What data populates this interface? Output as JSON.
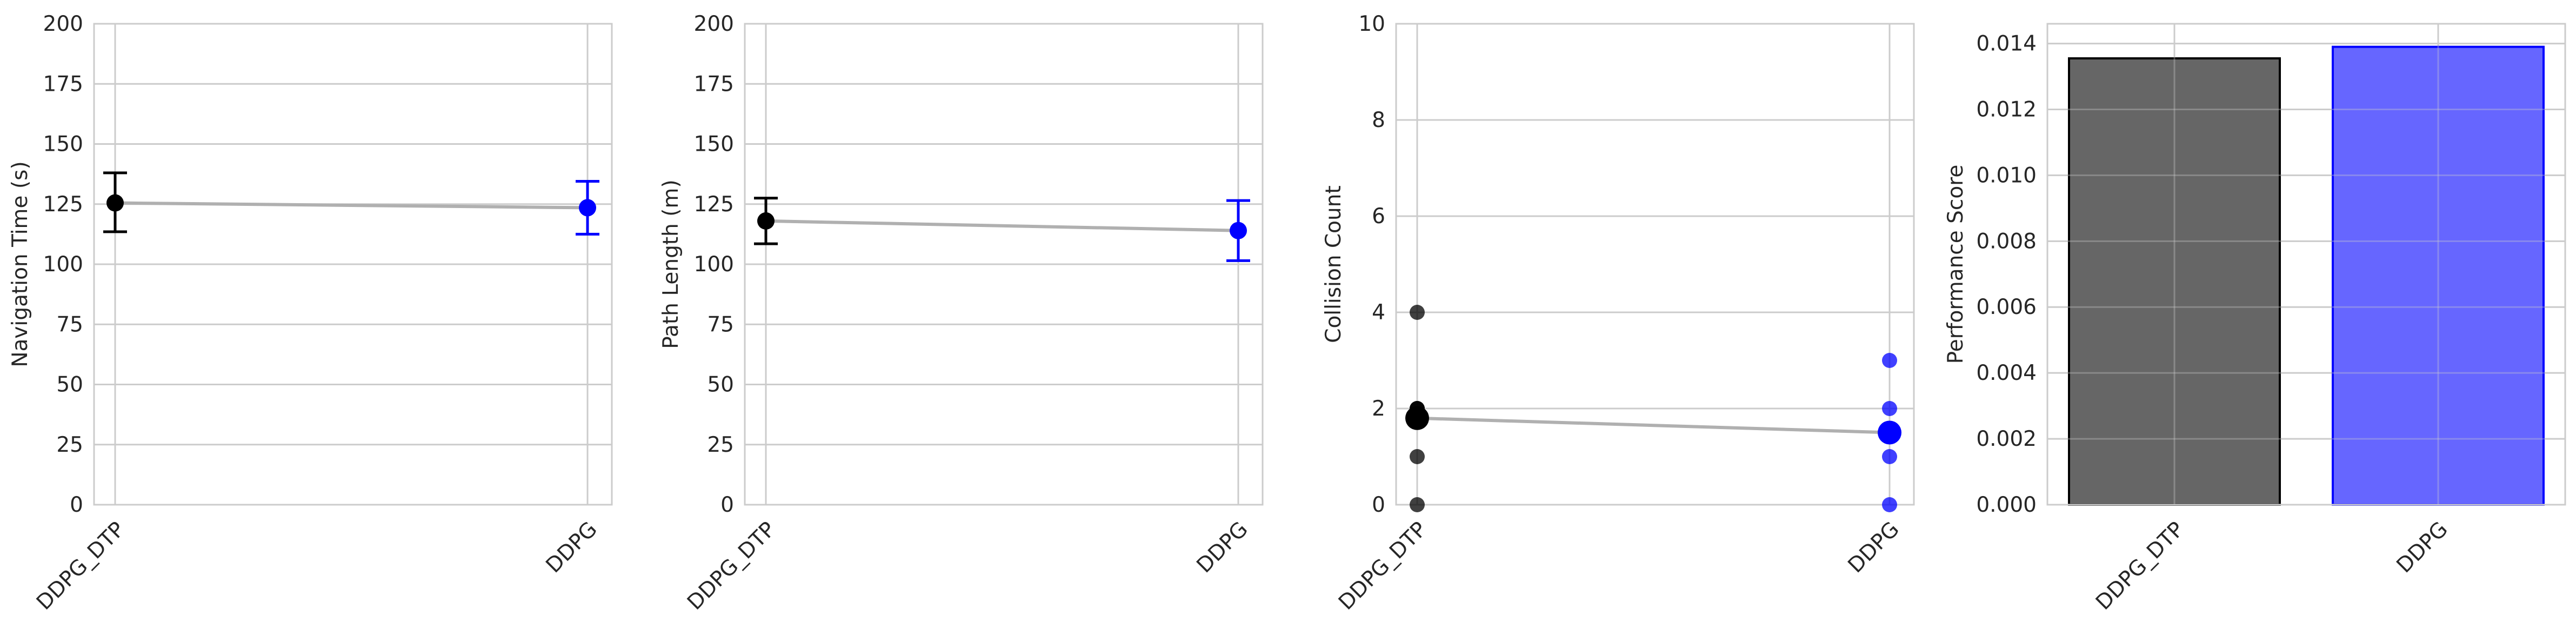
{
  "chart_data": [
    {
      "type": "scatter",
      "title": "",
      "xlabel": "",
      "ylabel": "Navigation Time (s)",
      "categories": [
        "DDPG_DTP",
        "DDPG"
      ],
      "ylim": [
        0,
        200
      ],
      "yticks": [
        0,
        25,
        50,
        75,
        100,
        125,
        150,
        175,
        200
      ],
      "grid": true,
      "connector_color": "#b0b0b0",
      "series": [
        {
          "category": "DDPG_DTP",
          "mean": 125.5,
          "err_low": 113.5,
          "err_high": 138.0,
          "color": "#000000"
        },
        {
          "category": "DDPG",
          "mean": 123.5,
          "err_low": 112.5,
          "err_high": 134.5,
          "color": "#0000ff"
        }
      ]
    },
    {
      "type": "scatter",
      "title": "",
      "xlabel": "",
      "ylabel": "Path Length (m)",
      "categories": [
        "DDPG_DTP",
        "DDPG"
      ],
      "ylim": [
        0,
        200
      ],
      "yticks": [
        0,
        25,
        50,
        75,
        100,
        125,
        150,
        175,
        200
      ],
      "grid": true,
      "connector_color": "#b0b0b0",
      "series": [
        {
          "category": "DDPG_DTP",
          "mean": 118.0,
          "err_low": 108.5,
          "err_high": 127.5,
          "color": "#000000"
        },
        {
          "category": "DDPG",
          "mean": 114.0,
          "err_low": 101.5,
          "err_high": 126.5,
          "color": "#0000ff"
        }
      ]
    },
    {
      "type": "scatter",
      "title": "",
      "xlabel": "",
      "ylabel": "Collision Count",
      "categories": [
        "DDPG_DTP",
        "DDPG"
      ],
      "ylim": [
        0,
        10
      ],
      "yticks": [
        0,
        2,
        4,
        6,
        8,
        10
      ],
      "grid": true,
      "connector_color": "#b0b0b0",
      "means": [
        {
          "category": "DDPG_DTP",
          "value": 1.8,
          "color": "#000000"
        },
        {
          "category": "DDPG",
          "value": 1.5,
          "color": "#0000ff"
        }
      ],
      "points": [
        {
          "category": "DDPG_DTP",
          "values": [
            0,
            1,
            2,
            2,
            2,
            4
          ],
          "color": "#000000"
        },
        {
          "category": "DDPG",
          "values": [
            0,
            1,
            2,
            3
          ],
          "color": "#0000ff"
        }
      ]
    },
    {
      "type": "bar",
      "title": "",
      "xlabel": "",
      "ylabel": "Performance Score",
      "categories": [
        "DDPG_DTP",
        "DDPG"
      ],
      "values": [
        0.01355,
        0.0139
      ],
      "colors": [
        "#666666",
        "#6666ff"
      ],
      "edgecolors": [
        "#000000",
        "#0000ff"
      ],
      "ylim": [
        0,
        0.0146
      ],
      "yticks": [
        0.0,
        0.002,
        0.004,
        0.006,
        0.008,
        0.01,
        0.012,
        0.014
      ],
      "ytick_labels": [
        "0.000",
        "0.002",
        "0.004",
        "0.006",
        "0.008",
        "0.010",
        "0.012",
        "0.014"
      ],
      "grid": true
    }
  ]
}
